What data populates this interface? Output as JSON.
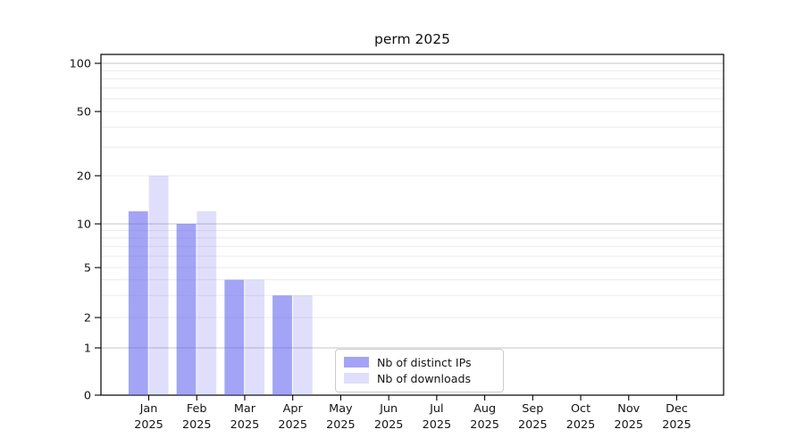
{
  "chart_data": {
    "type": "bar",
    "title": "perm 2025",
    "categories": [
      "Jan",
      "Feb",
      "Mar",
      "Apr",
      "May",
      "Jun",
      "Jul",
      "Aug",
      "Sep",
      "Oct",
      "Nov",
      "Dec"
    ],
    "category_year": "2025",
    "xlabel": "",
    "ylabel": "",
    "yscale": "symlog",
    "ylim": [
      0,
      115
    ],
    "yticks": [
      100,
      50,
      20,
      10,
      5,
      2,
      1,
      0
    ],
    "grid": {
      "major_values": [
        1,
        10,
        100
      ],
      "minor_values": [
        2,
        3,
        4,
        5,
        6,
        7,
        8,
        9,
        20,
        30,
        40,
        50,
        60,
        70,
        80,
        90
      ],
      "major_color": "#c4c4c4",
      "minor_color": "#ebebeb"
    },
    "legend": {
      "position": "lower center",
      "border_color": "#cccccc"
    },
    "series": [
      {
        "name": "Nb of distinct IPs",
        "color": "rgba(95,95,240,0.57)",
        "values": [
          12,
          10,
          4,
          3,
          0,
          0,
          0,
          0,
          0,
          0,
          0,
          0
        ]
      },
      {
        "name": "Nb of downloads",
        "color": "rgba(95,95,240,0.20)",
        "values": [
          20,
          12,
          4,
          3,
          0,
          0,
          0,
          0,
          0,
          0,
          0,
          0
        ]
      }
    ]
  }
}
